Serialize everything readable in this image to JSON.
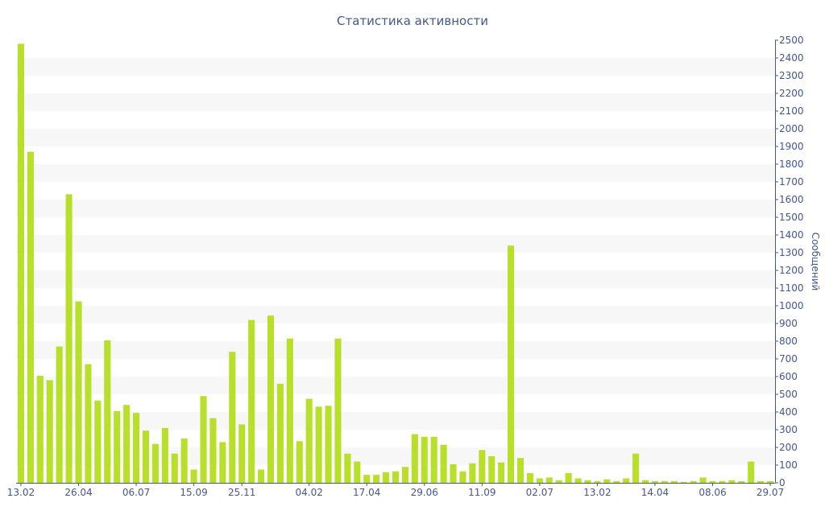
{
  "chart_data": {
    "type": "bar",
    "title": "Статистика активности",
    "xlabel": "",
    "ylabel": "Сообщений",
    "ylim": [
      0,
      2500
    ],
    "y_ticks": [
      0,
      100,
      200,
      300,
      400,
      500,
      600,
      700,
      800,
      900,
      1000,
      1100,
      1200,
      1300,
      1400,
      1500,
      1600,
      1700,
      1800,
      1900,
      2000,
      2100,
      2200,
      2300,
      2400,
      2500
    ],
    "y_axis_position": "right",
    "grid": "alternating horizontal bands",
    "legend": "none",
    "x_tick_labels": [
      {
        "index": 0,
        "label": "13.02"
      },
      {
        "index": 6,
        "label": "26.04"
      },
      {
        "index": 12,
        "label": "06.07"
      },
      {
        "index": 18,
        "label": "15.09"
      },
      {
        "index": 23,
        "label": "25.11"
      },
      {
        "index": 30,
        "label": "04.02"
      },
      {
        "index": 36,
        "label": "17.04"
      },
      {
        "index": 42,
        "label": "29.06"
      },
      {
        "index": 48,
        "label": "11.09"
      },
      {
        "index": 54,
        "label": "02.07"
      },
      {
        "index": 60,
        "label": "13.02"
      },
      {
        "index": 66,
        "label": "14.04"
      },
      {
        "index": 72,
        "label": "08.06"
      },
      {
        "index": 78,
        "label": "29.07"
      }
    ],
    "values": [
      2480,
      1870,
      605,
      580,
      770,
      1630,
      1025,
      670,
      465,
      805,
      405,
      440,
      395,
      295,
      220,
      310,
      165,
      250,
      75,
      490,
      365,
      230,
      740,
      330,
      920,
      75,
      945,
      560,
      815,
      235,
      475,
      430,
      435,
      815,
      165,
      120,
      45,
      45,
      60,
      65,
      90,
      275,
      260,
      260,
      215,
      105,
      65,
      110,
      185,
      150,
      115,
      1340,
      140,
      55,
      25,
      30,
      15,
      55,
      25,
      15,
      10,
      20,
      10,
      25,
      165,
      15,
      10,
      10,
      10,
      5,
      10,
      30,
      10,
      10,
      15,
      10,
      120,
      10,
      10
    ],
    "colors": {
      "bar": "#b8e02b",
      "band": "#f7f7f7",
      "axis": "#44578e",
      "text": "#44578e"
    }
  }
}
